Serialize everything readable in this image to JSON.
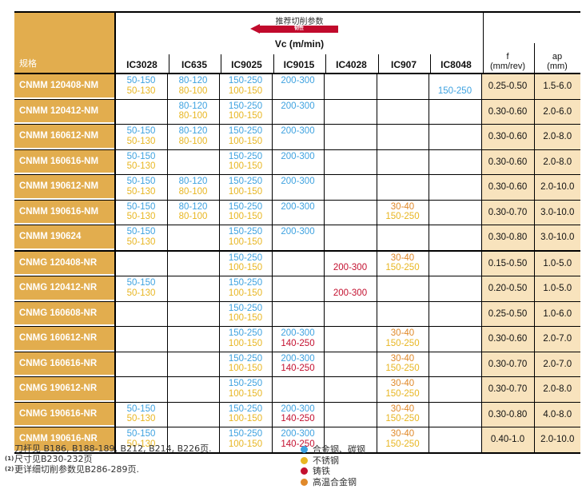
{
  "header": {
    "spec_label": "规格",
    "title": "推荐切削参数",
    "arrow_label": "韧性",
    "vc_label": "Vc (m/min)",
    "grades": [
      "IC3028",
      "IC635",
      "IC9025",
      "IC9015",
      "IC4028",
      "IC907",
      "IC8048"
    ],
    "f_label": "f",
    "f_unit": "(mm/rev)",
    "ap_label": "ap",
    "ap_unit": "(mm)"
  },
  "colors": {
    "b": "#3ea2e0",
    "y": "#e8b622",
    "r": "#c3102f",
    "o": "#e0892a",
    "label_bg": "#e2ad4e",
    "fv_bg": "#f8e3bd"
  },
  "rows": [
    {
      "name": "CNMM 120408-NM",
      "cells": [
        [
          [
            "50-150",
            "b"
          ],
          [
            "50-130",
            "y"
          ]
        ],
        [
          [
            "80-120",
            "b"
          ],
          [
            "80-100",
            "y"
          ]
        ],
        [
          [
            "150-250",
            "b"
          ],
          [
            "100-150",
            "y"
          ]
        ],
        [
          [
            "200-300",
            "b"
          ],
          null
        ],
        [
          null,
          null
        ],
        [
          null,
          null
        ],
        [
          null,
          [
            "150-250",
            "b"
          ]
        ]
      ],
      "f": "0.25-0.50",
      "ap": "1.5-6.0"
    },
    {
      "name": "CNMM 120412-NM",
      "cells": [
        [
          null,
          null
        ],
        [
          [
            "80-120",
            "b"
          ],
          [
            "80-100",
            "y"
          ]
        ],
        [
          [
            "150-250",
            "b"
          ],
          [
            "100-150",
            "y"
          ]
        ],
        [
          [
            "200-300",
            "b"
          ],
          null
        ],
        [
          null,
          null
        ],
        [
          null,
          null
        ],
        [
          null,
          null
        ]
      ],
      "f": "0.30-0.60",
      "ap": "2.0-6.0"
    },
    {
      "name": "CNMM 160612-NM",
      "cells": [
        [
          [
            "50-150",
            "b"
          ],
          [
            "50-130",
            "y"
          ]
        ],
        [
          [
            "80-120",
            "b"
          ],
          [
            "80-100",
            "y"
          ]
        ],
        [
          [
            "150-250",
            "b"
          ],
          [
            "100-150",
            "y"
          ]
        ],
        [
          [
            "200-300",
            "b"
          ],
          null
        ],
        [
          null,
          null
        ],
        [
          null,
          null
        ],
        [
          null,
          null
        ]
      ],
      "f": "0.30-0.60",
      "ap": "2.0-8.0"
    },
    {
      "name": "CNMM 160616-NM",
      "cells": [
        [
          [
            "50-150",
            "b"
          ],
          [
            "50-130",
            "y"
          ]
        ],
        [
          null,
          null
        ],
        [
          [
            "150-250",
            "b"
          ],
          [
            "100-150",
            "y"
          ]
        ],
        [
          [
            "200-300",
            "b"
          ],
          null
        ],
        [
          null,
          null
        ],
        [
          null,
          null
        ],
        [
          null,
          null
        ]
      ],
      "f": "0.30-0.60",
      "ap": "2.0-8.0"
    },
    {
      "name": "CNMM 190612-NM",
      "cells": [
        [
          [
            "50-150",
            "b"
          ],
          [
            "50-130",
            "y"
          ]
        ],
        [
          [
            "80-120",
            "b"
          ],
          [
            "80-100",
            "y"
          ]
        ],
        [
          [
            "150-250",
            "b"
          ],
          [
            "100-150",
            "y"
          ]
        ],
        [
          [
            "200-300",
            "b"
          ],
          null
        ],
        [
          null,
          null
        ],
        [
          null,
          null
        ],
        [
          null,
          null
        ]
      ],
      "f": "0.30-0.60",
      "ap": "2.0-10.0"
    },
    {
      "name": "CNMM 190616-NM",
      "cells": [
        [
          [
            "50-150",
            "b"
          ],
          [
            "50-130",
            "y"
          ]
        ],
        [
          [
            "80-120",
            "b"
          ],
          [
            "80-100",
            "y"
          ]
        ],
        [
          [
            "150-250",
            "b"
          ],
          [
            "100-150",
            "y"
          ]
        ],
        [
          [
            "200-300",
            "b"
          ],
          null
        ],
        [
          null,
          null
        ],
        [
          [
            "30-40",
            "o"
          ],
          [
            "150-250",
            "y"
          ]
        ],
        [
          null,
          null
        ]
      ],
      "f": "0.30-0.70",
      "ap": "3.0-10.0"
    },
    {
      "name": "CNMM 190624",
      "cells": [
        [
          [
            "50-150",
            "b"
          ],
          [
            "50-130",
            "y"
          ]
        ],
        [
          null,
          null
        ],
        [
          [
            "150-250",
            "b"
          ],
          [
            "100-150",
            "y"
          ]
        ],
        [
          [
            "200-300",
            "b"
          ],
          null
        ],
        [
          null,
          null
        ],
        [
          null,
          null
        ],
        [
          null,
          null
        ]
      ],
      "f": "0.30-0.80",
      "ap": "3.0-10.0",
      "group_end": true
    },
    {
      "name": "CNMG 120408-NR",
      "cells": [
        [
          null,
          null
        ],
        [
          null,
          null
        ],
        [
          [
            "150-250",
            "b"
          ],
          [
            "100-150",
            "y"
          ]
        ],
        [
          null,
          null
        ],
        [
          null,
          [
            "200-300",
            "r"
          ]
        ],
        [
          [
            "30-40",
            "o"
          ],
          [
            "150-250",
            "y"
          ]
        ],
        [
          null,
          null
        ]
      ],
      "f": "0.15-0.50",
      "ap": "1.0-5.0"
    },
    {
      "name": "CNMG 120412-NR",
      "cells": [
        [
          [
            "50-150",
            "b"
          ],
          [
            "50-130",
            "y"
          ]
        ],
        [
          null,
          null
        ],
        [
          [
            "150-250",
            "b"
          ],
          [
            "100-150",
            "y"
          ]
        ],
        [
          null,
          null
        ],
        [
          null,
          [
            "200-300",
            "r"
          ]
        ],
        [
          null,
          null
        ],
        [
          null,
          null
        ]
      ],
      "f": "0.20-0.50",
      "ap": "1.0-5.0"
    },
    {
      "name": "CNMG 160608-NR",
      "cells": [
        [
          null,
          null
        ],
        [
          null,
          null
        ],
        [
          [
            "150-250",
            "b"
          ],
          [
            "100-150",
            "y"
          ]
        ],
        [
          null,
          null
        ],
        [
          null,
          null
        ],
        [
          null,
          null
        ],
        [
          null,
          null
        ]
      ],
      "f": "0.25-0.50",
      "ap": "1.0-6.0"
    },
    {
      "name": "CNMG 160612-NR",
      "cells": [
        [
          null,
          null
        ],
        [
          null,
          null
        ],
        [
          [
            "150-250",
            "b"
          ],
          [
            "100-150",
            "y"
          ]
        ],
        [
          [
            "200-300",
            "b"
          ],
          [
            "140-250",
            "r"
          ]
        ],
        [
          null,
          null
        ],
        [
          [
            "30-40",
            "o"
          ],
          [
            "150-250",
            "y"
          ]
        ],
        [
          null,
          null
        ]
      ],
      "f": "0.30-0.60",
      "ap": "2.0-7.0"
    },
    {
      "name": "CNMG 160616-NR",
      "cells": [
        [
          null,
          null
        ],
        [
          null,
          null
        ],
        [
          [
            "150-250",
            "b"
          ],
          [
            "100-150",
            "y"
          ]
        ],
        [
          [
            "200-300",
            "b"
          ],
          [
            "140-250",
            "r"
          ]
        ],
        [
          null,
          null
        ],
        [
          [
            "30-40",
            "o"
          ],
          [
            "150-250",
            "y"
          ]
        ],
        [
          null,
          null
        ]
      ],
      "f": "0.30-0.70",
      "ap": "2.0-7.0"
    },
    {
      "name": "CNMG 190612-NR",
      "cells": [
        [
          null,
          null
        ],
        [
          null,
          null
        ],
        [
          [
            "150-250",
            "b"
          ],
          [
            "100-150",
            "y"
          ]
        ],
        [
          null,
          null
        ],
        [
          null,
          null
        ],
        [
          [
            "30-40",
            "o"
          ],
          [
            "150-250",
            "y"
          ]
        ],
        [
          null,
          null
        ]
      ],
      "f": "0.30-0.70",
      "ap": "2.0-8.0"
    },
    {
      "name": "CNMG 190616-NR",
      "cells": [
        [
          [
            "50-150",
            "b"
          ],
          [
            "50-130",
            "y"
          ]
        ],
        [
          null,
          null
        ],
        [
          [
            "150-250",
            "b"
          ],
          [
            "100-150",
            "y"
          ]
        ],
        [
          [
            "200-300",
            "b"
          ],
          [
            "140-250",
            "r"
          ]
        ],
        [
          null,
          null
        ],
        [
          [
            "30-40",
            "o"
          ],
          [
            "150-250",
            "y"
          ]
        ],
        [
          null,
          null
        ]
      ],
      "f": "0.30-0.80",
      "ap": "4.0-8.0"
    },
    {
      "name": "CNMM 190616-NR",
      "cells": [
        [
          [
            "50-150",
            "b"
          ],
          [
            "50-130",
            "y"
          ]
        ],
        [
          null,
          null
        ],
        [
          [
            "150-250",
            "b"
          ],
          [
            "100-150",
            "y"
          ]
        ],
        [
          [
            "200-300",
            "b"
          ],
          [
            "140-250",
            "r"
          ]
        ],
        [
          null,
          null
        ],
        [
          [
            "30-40",
            "o"
          ],
          [
            "150-250",
            "y"
          ]
        ],
        [
          null,
          null
        ]
      ],
      "f": "0.40-1.0",
      "ap": "2.0-10.0"
    }
  ],
  "notes": [
    {
      "mark": "",
      "text": "刀杆见 B186, B188-189, B212, B214, B226页."
    },
    {
      "mark": "(1)",
      "text": "尺寸见B230-232页"
    },
    {
      "mark": "(2)",
      "text": "更详细切削参数见B286-289页."
    }
  ],
  "legend": [
    {
      "color": "b",
      "label": "合金钢、碳钢"
    },
    {
      "color": "y",
      "label": "不锈钢"
    },
    {
      "color": "r",
      "label": "铸铁"
    },
    {
      "color": "o",
      "label": "高温合金钢"
    }
  ]
}
